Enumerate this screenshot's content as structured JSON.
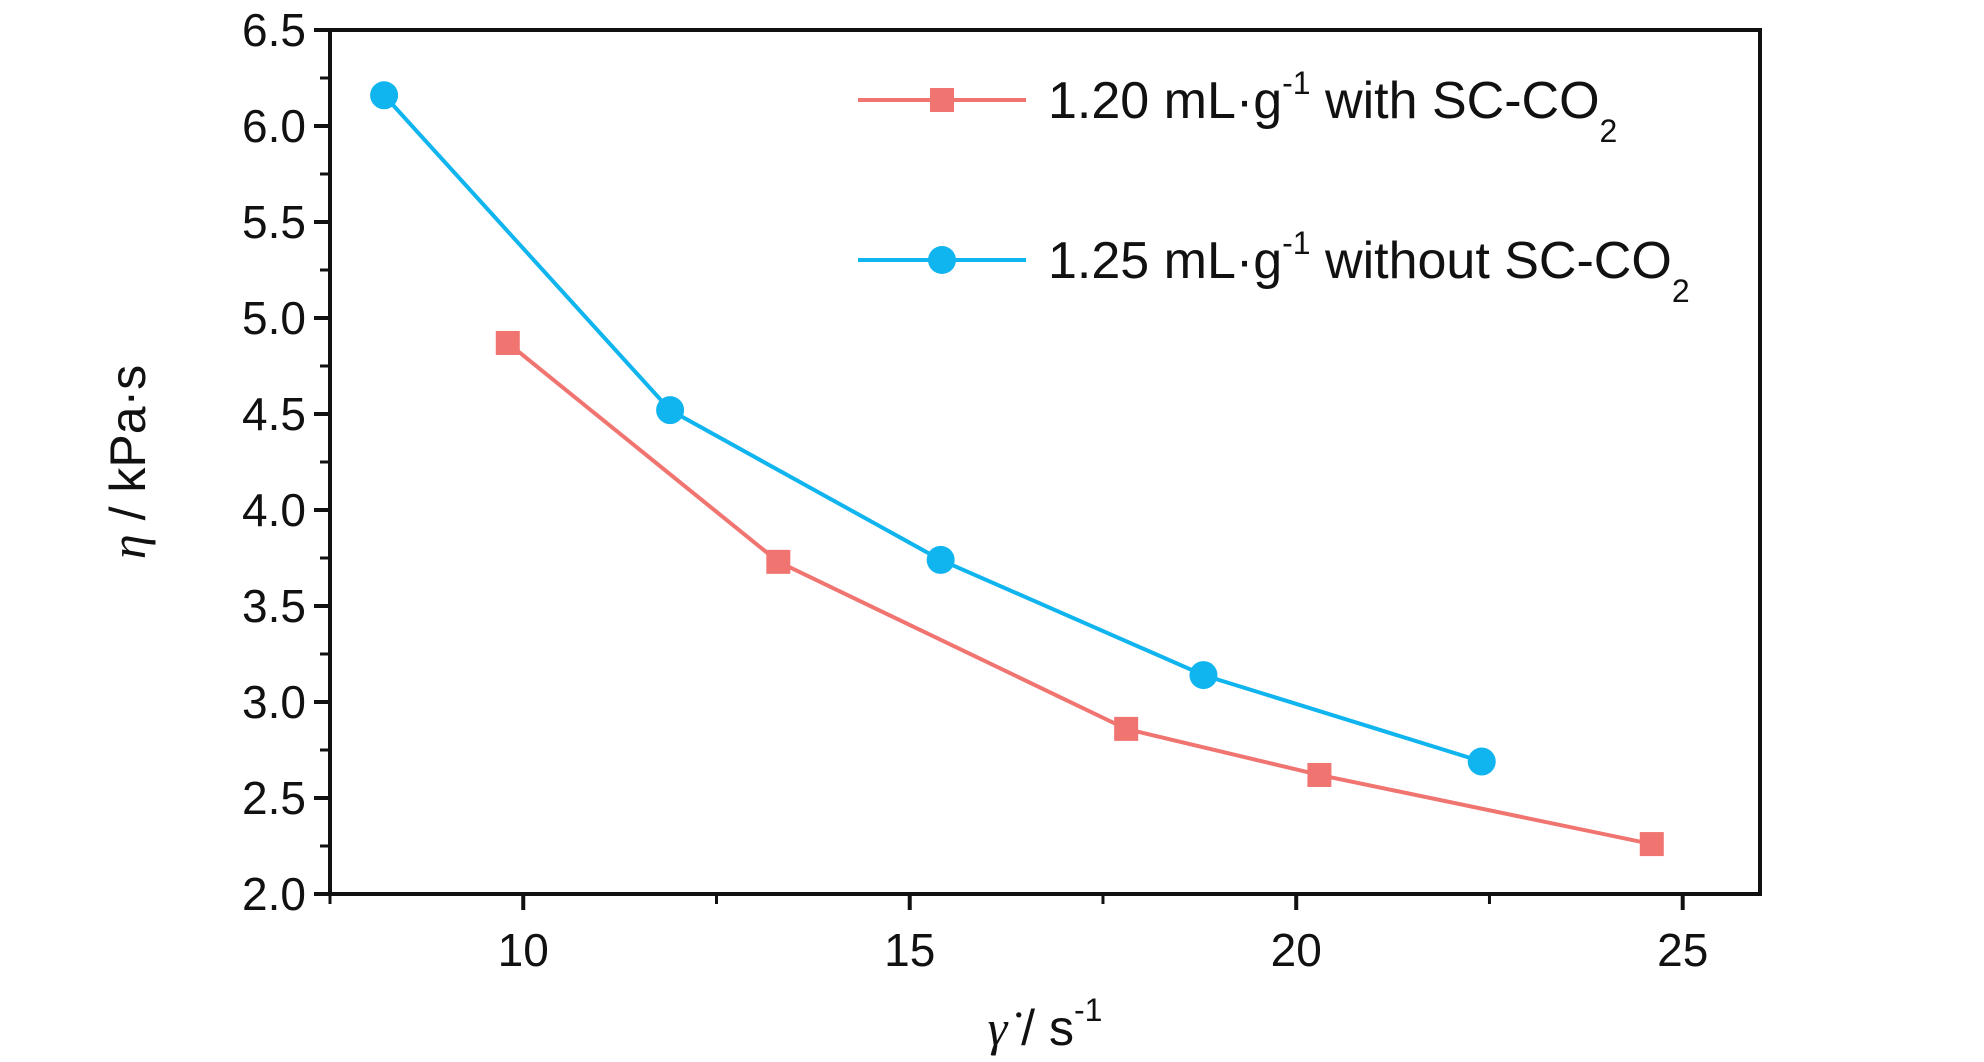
{
  "chart_data": {
    "type": "line",
    "xlabel": {
      "symbol": "γ̇",
      "rest": " / s",
      "sup": "-1"
    },
    "ylabel": {
      "symbol": "η",
      "rest": " / kPa·s"
    },
    "xlim": [
      7.5,
      26.0
    ],
    "ylim": [
      2.0,
      6.5
    ],
    "xticks": [
      10,
      15,
      20,
      25
    ],
    "yticks": [
      2.0,
      2.5,
      3.0,
      3.5,
      4.0,
      4.5,
      5.0,
      5.5,
      6.0,
      6.5
    ],
    "ytick_labels": [
      "2.0",
      "2.5",
      "3.0",
      "3.5",
      "4.0",
      "4.5",
      "5.0",
      "5.5",
      "6.0",
      "6.5"
    ],
    "grid": false,
    "legend_position": "top-right",
    "series": [
      {
        "label": {
          "main": "1.20 mL·g",
          "sup": "-1",
          "mid": " with SC-CO",
          "sub": "2"
        },
        "color": "#f07470",
        "marker": "square",
        "x": [
          9.8,
          13.3,
          17.8,
          20.3,
          24.6
        ],
        "y": [
          4.87,
          3.73,
          2.86,
          2.62,
          2.26
        ]
      },
      {
        "label": {
          "main": "1.25 mL·g",
          "sup": "-1",
          "mid": " without SC-CO",
          "sub": "2"
        },
        "color": "#10b4ee",
        "marker": "circle",
        "x": [
          8.2,
          11.9,
          15.4,
          18.8,
          22.4
        ],
        "y": [
          6.16,
          4.52,
          3.74,
          3.14,
          2.69
        ]
      }
    ]
  }
}
